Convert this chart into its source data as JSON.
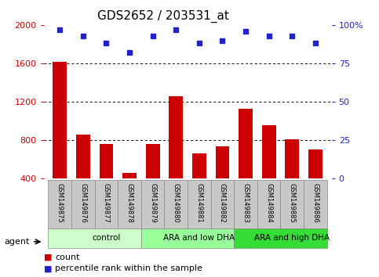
{
  "title": "GDS2652 / 203531_at",
  "samples": [
    "GSM149875",
    "GSM149876",
    "GSM149877",
    "GSM149878",
    "GSM149879",
    "GSM149880",
    "GSM149881",
    "GSM149882",
    "GSM149883",
    "GSM149884",
    "GSM149885",
    "GSM149886"
  ],
  "counts": [
    1620,
    860,
    760,
    460,
    760,
    1260,
    660,
    740,
    1130,
    960,
    810,
    700
  ],
  "percentile_ranks": [
    97,
    93,
    88,
    82,
    93,
    97,
    88,
    90,
    96,
    93,
    93,
    88
  ],
  "groups": [
    {
      "label": "control",
      "start": 0,
      "end": 4,
      "color": "#ccffcc"
    },
    {
      "label": "ARA and low DHA",
      "start": 4,
      "end": 8,
      "color": "#99ff99"
    },
    {
      "label": "ARA and high DHA",
      "start": 8,
      "end": 12,
      "color": "#33dd33"
    }
  ],
  "ylim_left": [
    400,
    2000
  ],
  "ylim_right": [
    0,
    100
  ],
  "bar_color": "#cc0000",
  "dot_color": "#2222cc",
  "left_axis_color": "#cc0000",
  "right_axis_color": "#2222cc",
  "tick_labels_left": [
    400,
    800,
    1200,
    1600,
    2000
  ],
  "tick_labels_right": [
    0,
    25,
    50,
    75,
    100
  ],
  "title_fontsize": 11,
  "legend_items": [
    {
      "label": "count",
      "color": "#cc0000"
    },
    {
      "label": "percentile rank within the sample",
      "color": "#2222cc"
    }
  ]
}
